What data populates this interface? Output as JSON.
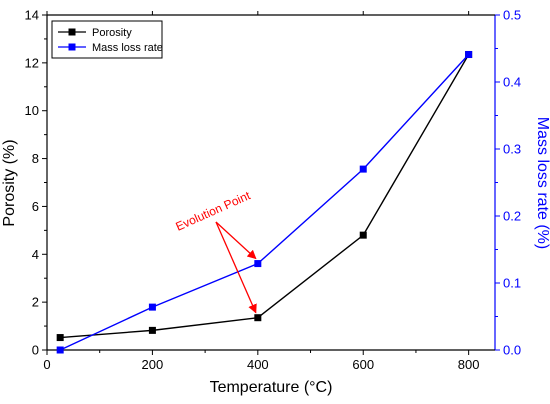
{
  "chart_data": {
    "type": "line",
    "x": [
      25,
      200,
      400,
      600,
      800
    ],
    "xlabel": "Temperature (°C)",
    "ylabel_left": "Porosity (%)",
    "ylabel_right": "Mass loss rate (%)",
    "xlim": [
      0,
      850
    ],
    "ylim_left": [
      0,
      14
    ],
    "ylim_right": [
      0,
      0.5
    ],
    "xticks": [
      "0",
      "200",
      "400",
      "600",
      "800"
    ],
    "yticks_left": [
      "0",
      "2",
      "4",
      "6",
      "8",
      "10",
      "12",
      "14"
    ],
    "yticks_right": [
      "0.0",
      "0.1",
      "0.2",
      "0.3",
      "0.4",
      "0.5"
    ],
    "grid": false,
    "legend_position": "top-left",
    "series": [
      {
        "name": "Porosity",
        "axis": "left",
        "color": "#000000",
        "marker": "square",
        "values": [
          0.52,
          0.82,
          1.35,
          4.8,
          12.35
        ]
      },
      {
        "name": "Mass loss rate",
        "axis": "right",
        "color": "#0000ff",
        "marker": "square",
        "values": [
          0.0,
          0.064,
          0.129,
          0.27,
          0.441
        ]
      }
    ],
    "annotation": {
      "text": "Evolution Point",
      "color": "#ff0000",
      "targets": [
        {
          "series": "Mass loss rate",
          "x": 400
        },
        {
          "series": "Porosity",
          "x": 400
        }
      ]
    }
  }
}
